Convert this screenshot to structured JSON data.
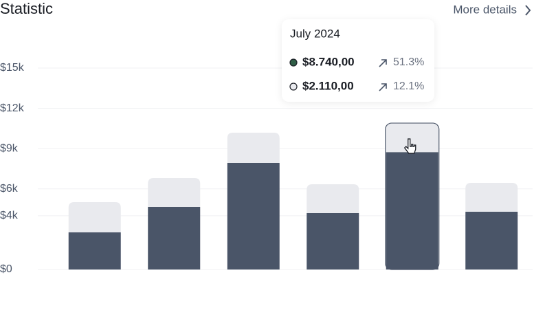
{
  "header": {
    "title": "Statistic",
    "link": "More details"
  },
  "chart_data": {
    "type": "bar",
    "stacked": true,
    "categories": [
      null,
      null,
      null,
      null,
      "July 2024",
      null
    ],
    "series": [
      {
        "color": "#4a5568",
        "values": [
          2765,
          4659,
          7936,
          4198,
          8740,
          4300
        ]
      },
      {
        "color": "#e9eaee",
        "values": [
          2252,
          2150,
          2253,
          2150,
          2110,
          2150
        ]
      }
    ],
    "ylim": [
      0,
      15000
    ],
    "yticks": [
      {
        "value": 0,
        "label": "$0"
      },
      {
        "value": 4000,
        "label": "$4k"
      },
      {
        "value": 6000,
        "label": "$6k"
      },
      {
        "value": 9000,
        "label": "$9k"
      },
      {
        "value": 12000,
        "label": "$12k"
      },
      {
        "value": 15000,
        "label": "$15k"
      }
    ],
    "grid": true,
    "tooltip": {
      "rows": [
        {
          "amount": "$8.740,00",
          "change": "51.3%",
          "color": "#2f5d46"
        },
        {
          "amount": "$2.110,00",
          "change": "12.1%",
          "color": "#e9eaee"
        }
      ]
    }
  }
}
